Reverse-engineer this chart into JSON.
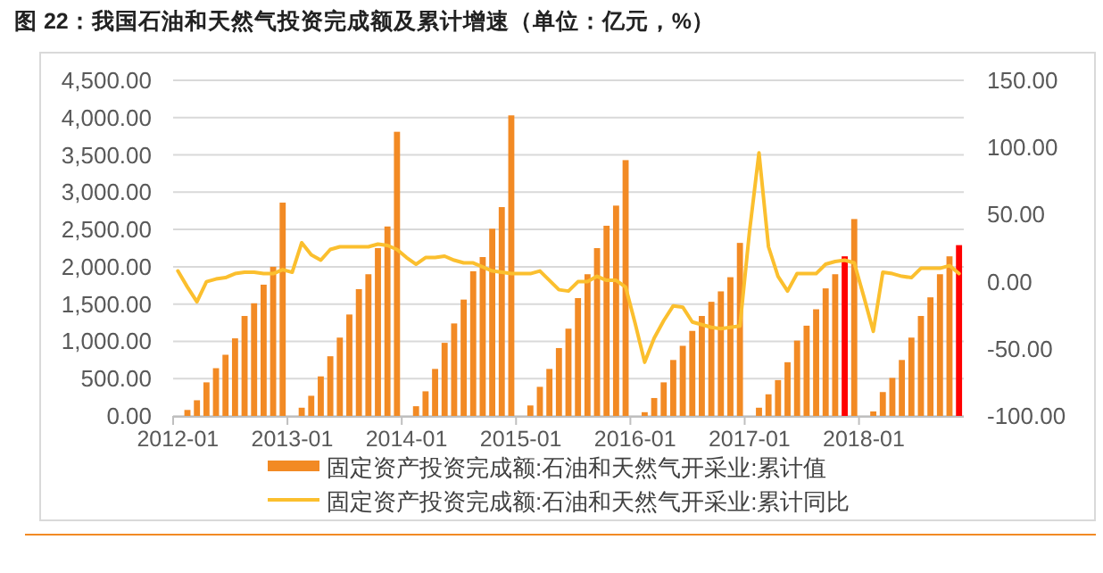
{
  "chart_data": {
    "type": "bar",
    "title": "图 22：我国石油和天然气投资完成额及累计增速（单位：亿元，%）",
    "categories": [
      "2012-01",
      null,
      null,
      null,
      null,
      null,
      null,
      null,
      null,
      null,
      null,
      null,
      "2013-01",
      null,
      null,
      null,
      null,
      null,
      null,
      null,
      null,
      null,
      null,
      null,
      "2014-01",
      null,
      null,
      null,
      null,
      null,
      null,
      null,
      null,
      null,
      null,
      null,
      "2015-01",
      null,
      null,
      null,
      null,
      null,
      null,
      null,
      null,
      null,
      null,
      null,
      "2016-01",
      null,
      null,
      null,
      null,
      null,
      null,
      null,
      null,
      null,
      null,
      null,
      "2017-01",
      null,
      null,
      null,
      null,
      null,
      null,
      null,
      null,
      null,
      null,
      null,
      "2018-01",
      null,
      null,
      null,
      null,
      null,
      null,
      null,
      null,
      null,
      null
    ],
    "series": [
      {
        "name": "固定资产投资完成额:石油和天然气开采业:累计值",
        "color": "#f28a24",
        "colors": [
          null,
          "#f28a24",
          "#f28a24",
          "#f28a24",
          "#f28a24",
          "#f28a24",
          "#f28a24",
          "#f28a24",
          "#f28a24",
          "#f28a24",
          "#f28a24",
          "#f28a24",
          null,
          "#f28a24",
          "#f28a24",
          "#f28a24",
          "#f28a24",
          "#f28a24",
          "#f28a24",
          "#f28a24",
          "#f28a24",
          "#f28a24",
          "#f28a24",
          "#f28a24",
          null,
          "#f28a24",
          "#f28a24",
          "#f28a24",
          "#f28a24",
          "#f28a24",
          "#f28a24",
          "#f28a24",
          "#f28a24",
          "#f28a24",
          "#f28a24",
          "#f28a24",
          null,
          "#f28a24",
          "#f28a24",
          "#f28a24",
          "#f28a24",
          "#f28a24",
          "#f28a24",
          "#f28a24",
          "#f28a24",
          "#f28a24",
          "#f28a24",
          "#f28a24",
          null,
          "#f28a24",
          "#f28a24",
          "#f28a24",
          "#f28a24",
          "#f28a24",
          "#f28a24",
          "#f28a24",
          "#f28a24",
          "#f28a24",
          "#f28a24",
          "#f28a24",
          null,
          "#f28a24",
          "#f28a24",
          "#f28a24",
          "#f28a24",
          "#f28a24",
          "#f28a24",
          "#f28a24",
          "#f28a24",
          "#f28a24",
          "#ff0000",
          "#f28a24",
          null,
          "#f28a24",
          "#f28a24",
          "#f28a24",
          "#f28a24",
          "#f28a24",
          "#f28a24",
          "#f28a24",
          "#f28a24",
          "#f28a24",
          "#ff0000"
        ],
        "values": [
          null,
          80,
          210,
          450,
          640,
          820,
          1040,
          1340,
          1510,
          1760,
          2000,
          2860,
          null,
          110,
          270,
          530,
          800,
          1050,
          1360,
          1700,
          1900,
          2250,
          2540,
          3810,
          null,
          130,
          330,
          630,
          980,
          1240,
          1560,
          1940,
          2130,
          2510,
          2800,
          4030,
          null,
          140,
          390,
          630,
          910,
          1170,
          1580,
          1900,
          2250,
          2550,
          2820,
          3430,
          null,
          50,
          240,
          450,
          750,
          940,
          1140,
          1340,
          1530,
          1670,
          1860,
          2320,
          null,
          110,
          290,
          480,
          720,
          1010,
          1210,
          1430,
          1710,
          1900,
          2140,
          2640,
          null,
          60,
          320,
          510,
          750,
          1050,
          1340,
          1590,
          1900,
          2140,
          2290
        ]
      },
      {
        "name": "固定资产投资完成额:石油和天然气开采业:累计同比",
        "type": "line",
        "axis": "y2",
        "color": "#fbbf2e",
        "values": [
          8,
          -4,
          -15,
          0,
          2,
          3,
          6,
          7,
          7,
          6,
          6,
          9,
          7,
          29,
          20,
          16,
          24,
          26,
          26,
          26,
          26,
          28,
          27,
          24,
          18,
          13,
          18,
          18,
          19,
          16,
          14,
          14,
          11,
          8,
          7,
          6,
          6,
          6,
          8,
          1,
          -6,
          -7,
          0,
          0,
          4,
          1,
          1,
          -4,
          -31,
          -60,
          -42,
          -29,
          -18,
          -19,
          -30,
          -32,
          -34,
          -35,
          -34,
          -33,
          37,
          96,
          26,
          4,
          -7,
          6,
          6,
          6,
          13,
          15,
          16,
          14,
          -11,
          -37,
          7,
          6,
          4,
          3,
          10,
          10,
          10,
          12,
          6
        ]
      }
    ],
    "ylim": [
      0,
      4500
    ],
    "yticks": [
      {
        "value": 0,
        "label": "0.00"
      },
      {
        "value": 500,
        "label": "500.00"
      },
      {
        "value": 1000,
        "label": "1,000.00"
      },
      {
        "value": 1500,
        "label": "1,500.00"
      },
      {
        "value": 2000,
        "label": "2,000.00"
      },
      {
        "value": 2500,
        "label": "2,500.00"
      },
      {
        "value": 3000,
        "label": "3,000.00"
      },
      {
        "value": 3500,
        "label": "3,500.00"
      },
      {
        "value": 4000,
        "label": "4,000.00"
      },
      {
        "value": 4500,
        "label": "4,500.00"
      }
    ],
    "y2lim": [
      -100,
      150
    ],
    "y2ticks": [
      {
        "value": -100,
        "label": "-100.00"
      },
      {
        "value": -50,
        "label": "-50.00"
      },
      {
        "value": 0,
        "label": "0.00"
      },
      {
        "value": 50,
        "label": "50.00"
      },
      {
        "value": 100,
        "label": "100.00"
      },
      {
        "value": 150,
        "label": "150.00"
      }
    ],
    "grid": "y",
    "legend": "bottom"
  }
}
